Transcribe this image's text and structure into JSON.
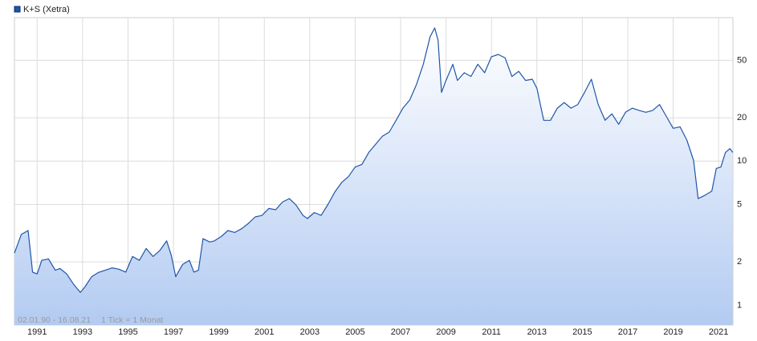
{
  "chart_data": {
    "type": "line",
    "log_scale": true,
    "grid": true,
    "area": true,
    "legend": "top-left",
    "annotations": [
      "02.01.90 - 16.08.21",
      "1 Tick = 1 Monat"
    ],
    "xlim": [
      1990,
      2021.63
    ],
    "xticks": [
      1991,
      1993,
      1995,
      1997,
      1999,
      2001,
      2003,
      2005,
      2007,
      2009,
      2011,
      2013,
      2015,
      2017,
      2019,
      2021
    ],
    "ylim": [
      0.73,
      99
    ],
    "yticks": [
      1,
      2,
      5,
      10,
      20,
      50
    ],
    "x": [
      1990.0,
      1990.3,
      1990.6,
      1990.8,
      1991.0,
      1991.2,
      1991.5,
      1991.8,
      1992.0,
      1992.3,
      1992.6,
      1992.9,
      1993.1,
      1993.4,
      1993.7,
      1994.0,
      1994.3,
      1994.6,
      1994.9,
      1995.2,
      1995.5,
      1995.8,
      1996.1,
      1996.4,
      1996.7,
      1996.9,
      1997.1,
      1997.4,
      1997.7,
      1997.9,
      1998.1,
      1998.3,
      1998.6,
      1998.8,
      1999.1,
      1999.4,
      1999.7,
      2000.0,
      2000.3,
      2000.6,
      2000.9,
      2001.2,
      2001.5,
      2001.8,
      2002.1,
      2002.4,
      2002.7,
      2002.9,
      2003.2,
      2003.5,
      2003.8,
      2004.1,
      2004.4,
      2004.7,
      2005.0,
      2005.3,
      2005.6,
      2005.9,
      2006.2,
      2006.5,
      2006.8,
      2007.1,
      2007.4,
      2007.7,
      2008.0,
      2008.3,
      2008.5,
      2008.65,
      2008.8,
      2009.0,
      2009.3,
      2009.5,
      2009.8,
      2010.1,
      2010.4,
      2010.7,
      2011.0,
      2011.3,
      2011.6,
      2011.9,
      2012.2,
      2012.5,
      2012.8,
      2013.0,
      2013.3,
      2013.6,
      2013.9,
      2014.2,
      2014.5,
      2014.8,
      2015.1,
      2015.4,
      2015.7,
      2016.0,
      2016.3,
      2016.6,
      2016.9,
      2017.2,
      2017.5,
      2017.8,
      2018.1,
      2018.4,
      2018.7,
      2019.0,
      2019.3,
      2019.6,
      2019.9,
      2020.1,
      2020.4,
      2020.7,
      2020.9,
      2021.1,
      2021.3,
      2021.5,
      2021.62
    ],
    "series": [
      {
        "name": "K+S (Xetra)",
        "color": "#1f56a8",
        "values": [
          2.3,
          3.1,
          3.3,
          1.7,
          1.65,
          2.05,
          2.1,
          1.75,
          1.8,
          1.65,
          1.4,
          1.23,
          1.34,
          1.58,
          1.69,
          1.75,
          1.82,
          1.78,
          1.7,
          2.18,
          2.05,
          2.48,
          2.18,
          2.4,
          2.8,
          2.24,
          1.58,
          1.92,
          2.05,
          1.7,
          1.75,
          2.9,
          2.75,
          2.8,
          3.0,
          3.3,
          3.2,
          3.4,
          3.7,
          4.1,
          4.2,
          4.7,
          4.6,
          5.2,
          5.5,
          4.95,
          4.2,
          4.0,
          4.4,
          4.2,
          5.0,
          6.1,
          7.1,
          7.8,
          9.1,
          9.5,
          11.5,
          13.1,
          14.9,
          15.9,
          19.2,
          23.3,
          26.5,
          34,
          47,
          73,
          84,
          69,
          30,
          36.3,
          47,
          36.3,
          41,
          38.7,
          47,
          41,
          53,
          55,
          52,
          38.7,
          42,
          36.3,
          37,
          32,
          19.2,
          19.2,
          23.3,
          25.5,
          23.3,
          24.7,
          30,
          37,
          24.7,
          19.2,
          21.3,
          18,
          21.8,
          23.3,
          22.5,
          21.8,
          22.5,
          24.7,
          20.4,
          16.9,
          17.3,
          14.0,
          10.1,
          5.5,
          5.8,
          6.2,
          8.9,
          9.1,
          11.5,
          12.2,
          11.5
        ]
      }
    ]
  }
}
